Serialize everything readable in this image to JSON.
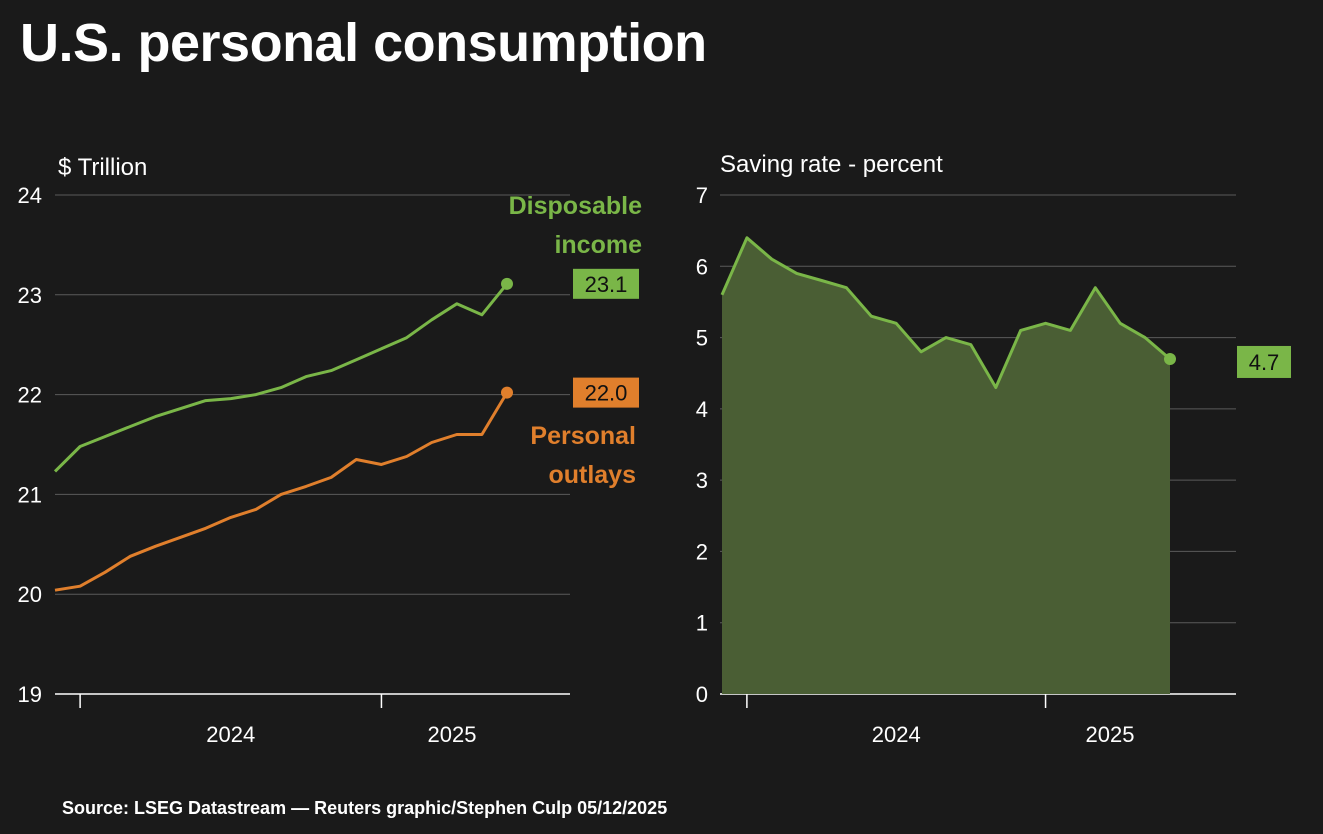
{
  "title": "U.S. personal consumption",
  "source": "Source: LSEG Datastream — Reuters graphic/Stephen Culp 05/12/2025",
  "colors": {
    "background": "#1a1a1a",
    "green": "#7ab648",
    "orange": "#e07f2c",
    "area_fill": "#4a5e34",
    "grid": "#5a5a5a"
  },
  "chart_data": [
    {
      "type": "line",
      "ylabel": "$ Trillion",
      "ylim": [
        19,
        24
      ],
      "yticks": [
        "19",
        "20",
        "21",
        "22",
        "23",
        "24"
      ],
      "xtick_labels": [
        "2024",
        "2025"
      ],
      "x": [
        "2023-09",
        "2023-10",
        "2023-11",
        "2023-12",
        "2024-01",
        "2024-02",
        "2024-03",
        "2024-04",
        "2024-05",
        "2024-06",
        "2024-07",
        "2024-08",
        "2024-09",
        "2024-10",
        "2024-11",
        "2024-12",
        "2025-01",
        "2025-02",
        "2025-03"
      ],
      "grid": true,
      "series": [
        {
          "name": "Disposable income",
          "name_lines": [
            "Disposable",
            "income"
          ],
          "color": "#7ab648",
          "last_value": "23.1",
          "values": [
            21.23,
            21.48,
            21.58,
            21.68,
            21.78,
            21.86,
            21.94,
            21.96,
            22.0,
            22.07,
            22.18,
            22.24,
            22.35,
            22.46,
            22.57,
            22.75,
            22.91,
            22.8,
            23.11
          ]
        },
        {
          "name": "Personal outlays",
          "name_lines": [
            "Personal",
            "outlays"
          ],
          "color": "#e07f2c",
          "last_value": "22.0",
          "values": [
            20.04,
            20.08,
            20.22,
            20.38,
            20.48,
            20.57,
            20.66,
            20.77,
            20.85,
            21.0,
            21.08,
            21.17,
            21.35,
            21.3,
            21.38,
            21.52,
            21.6,
            21.6,
            22.02
          ]
        }
      ]
    },
    {
      "type": "area",
      "ylabel": "Saving rate - percent",
      "ylim": [
        0,
        7
      ],
      "yticks": [
        "0",
        "1",
        "2",
        "3",
        "4",
        "5",
        "6",
        "7"
      ],
      "xtick_labels": [
        "2024",
        "2025"
      ],
      "x": [
        "2023-09",
        "2023-10",
        "2023-11",
        "2023-12",
        "2024-01",
        "2024-02",
        "2024-03",
        "2024-04",
        "2024-05",
        "2024-06",
        "2024-07",
        "2024-08",
        "2024-09",
        "2024-10",
        "2024-11",
        "2024-12",
        "2025-01",
        "2025-02",
        "2025-03"
      ],
      "grid": true,
      "series": [
        {
          "name": "Saving rate",
          "color": "#7ab648",
          "last_value": "4.7",
          "values": [
            5.6,
            6.4,
            6.1,
            5.9,
            5.8,
            5.7,
            5.3,
            5.2,
            4.8,
            5.0,
            4.9,
            4.3,
            5.1,
            5.2,
            5.1,
            5.7,
            5.2,
            5.0,
            4.7
          ]
        }
      ]
    }
  ]
}
